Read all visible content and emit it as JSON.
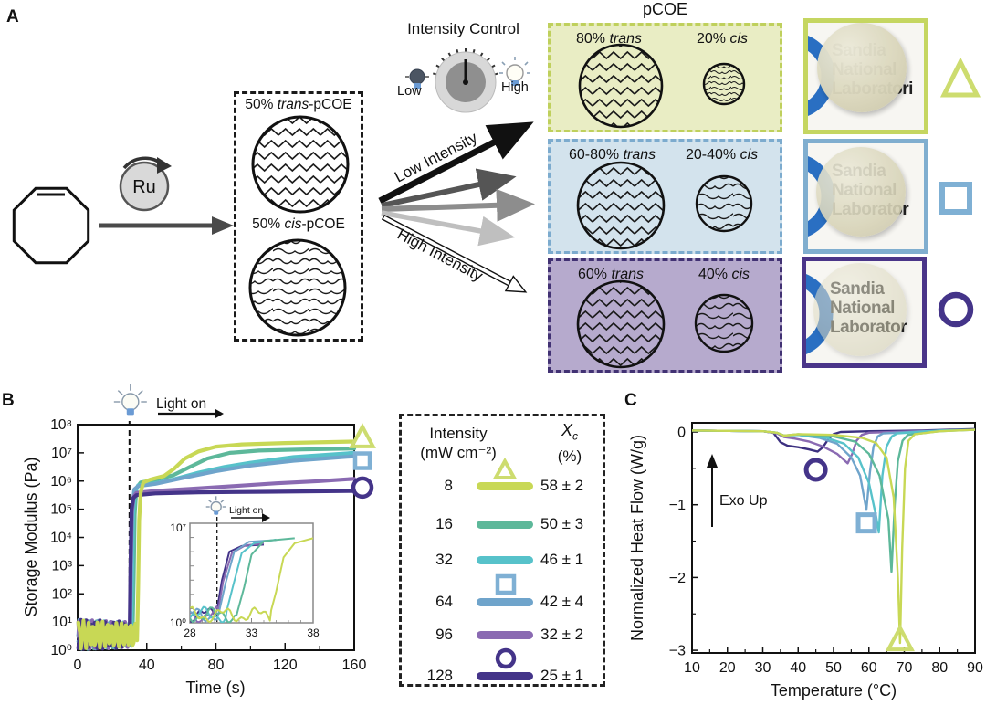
{
  "panelA": {
    "label": "A",
    "catalyst_label": "Ru",
    "precursor_box": {
      "trans_pre": "50% ",
      "trans_it": "trans",
      "trans_post": "-pCOE",
      "cis_pre": "50% ",
      "cis_it": "cis",
      "cis_post": "-pCOE"
    },
    "intensity_control": {
      "title": "Intensity Control",
      "low": "Low",
      "high": "High"
    },
    "arrow_labels": {
      "low": "Low Intensity",
      "high": "High Intensity"
    },
    "pcoe_title": "pCOE",
    "boxes": [
      {
        "trans_pct": "80%",
        "trans_word": "trans",
        "cis_pct": "20%",
        "cis_word": "cis",
        "bg": "#e9edc4",
        "border": "#bfd05c"
      },
      {
        "trans_pct": "60-80%",
        "trans_word": "trans",
        "cis_pct": "20-40%",
        "cis_word": "cis",
        "bg": "#d3e3ed",
        "border": "#7cabce"
      },
      {
        "trans_pct": "60%",
        "trans_word": "trans",
        "cis_pct": "40%",
        "cis_word": "cis",
        "bg": "#b6aacd",
        "border": "#413173"
      }
    ],
    "photos": [
      {
        "border": "#c5d661",
        "lines": [
          "Sandia",
          "National",
          "Laboratori"
        ],
        "marker": "triangle",
        "marker_color": "#cddc6f"
      },
      {
        "border": "#80aecf",
        "lines": [
          "Sandia",
          "National",
          "Laborator"
        ],
        "marker": "square",
        "marker_color": "#7fb0d4"
      },
      {
        "border": "#4a3589",
        "lines": [
          "Sandia",
          "National",
          "Laborator"
        ],
        "marker": "circle",
        "marker_color": "#443489"
      }
    ]
  },
  "panelB": {
    "label": "B"
  },
  "panelC": {
    "label": "C"
  },
  "legend": {
    "header": {
      "col1_line1": "Intensity",
      "col1_line2": "(mW cm⁻²)",
      "col2_main": "X",
      "col2_sub": "c",
      "col2_line2": "(%)"
    },
    "rows": [
      {
        "intensity": "8",
        "xc": "58 ± 2",
        "color": "#c8d855",
        "marker": "triangle",
        "marker_color": "#cddc6f"
      },
      {
        "intensity": "16",
        "xc": "50 ± 3",
        "color": "#5db89a",
        "marker": null,
        "marker_color": null
      },
      {
        "intensity": "32",
        "xc": "46 ± 1",
        "color": "#57c2ca",
        "marker": null,
        "marker_color": null
      },
      {
        "intensity": "64",
        "xc": "42 ± 4",
        "color": "#6fa4cb",
        "marker": "square",
        "marker_color": "#7fb0d4"
      },
      {
        "intensity": "96",
        "xc": "32 ± 2",
        "color": "#8a6ab2",
        "marker": null,
        "marker_color": null
      },
      {
        "intensity": "128",
        "xc": "25 ± 1",
        "color": "#443489",
        "marker": "circle",
        "marker_color": "#443489"
      }
    ]
  },
  "chart_data": [
    {
      "id": "storage_modulus",
      "type": "line",
      "title": "",
      "xlabel": "Time (s)",
      "ylabel": "Storage Modulus (Pa)",
      "xlim": [
        0,
        160
      ],
      "xticks": [
        0,
        40,
        80,
        120,
        160
      ],
      "x_minor_step": 20,
      "y_scale": "log",
      "ylog_exponent_range": [
        0,
        8
      ],
      "light_on_time_s": 30,
      "light_on_label": "Light on",
      "series": [
        {
          "intensity": 8,
          "color": "#c8d855",
          "points": [
            [
              34.6,
              0.9
            ],
            [
              35.0,
              2.2
            ],
            [
              35.6,
              4.6
            ],
            [
              36.5,
              5.6
            ],
            [
              38,
              5.95
            ],
            [
              42,
              6.05
            ],
            [
              50,
              6.18
            ],
            [
              56,
              6.45
            ],
            [
              62,
              6.8
            ],
            [
              70,
              7.05
            ],
            [
              80,
              7.22
            ],
            [
              95,
              7.3
            ],
            [
              120,
              7.35
            ],
            [
              160,
              7.4
            ]
          ]
        },
        {
          "intensity": 16,
          "color": "#5db89a",
          "points": [
            [
              31.9,
              0.9
            ],
            [
              32.4,
              2.5
            ],
            [
              33.0,
              4.8
            ],
            [
              34,
              5.75
            ],
            [
              36.5,
              5.95
            ],
            [
              45,
              6.05
            ],
            [
              55,
              6.2
            ],
            [
              65,
              6.5
            ],
            [
              75,
              6.8
            ],
            [
              88,
              7.0
            ],
            [
              105,
              7.08
            ],
            [
              130,
              7.12
            ],
            [
              160,
              7.15
            ]
          ]
        },
        {
          "intensity": 32,
          "color": "#57c2ca",
          "points": [
            [
              31.0,
              0.9
            ],
            [
              31.5,
              2.6
            ],
            [
              32.2,
              4.9
            ],
            [
              33.2,
              5.6
            ],
            [
              35,
              5.85
            ],
            [
              45,
              5.92
            ],
            [
              55,
              6.05
            ],
            [
              70,
              6.3
            ],
            [
              85,
              6.5
            ],
            [
              100,
              6.65
            ],
            [
              125,
              6.85
            ],
            [
              160,
              7.0
            ]
          ]
        },
        {
          "intensity": 64,
          "color": "#6fa4cb",
          "points": [
            [
              30.4,
              0.9
            ],
            [
              30.9,
              2.8
            ],
            [
              31.6,
              5.0
            ],
            [
              32.8,
              5.7
            ],
            [
              35,
              5.82
            ],
            [
              45,
              5.9
            ],
            [
              60,
              6.1
            ],
            [
              80,
              6.35
            ],
            [
              100,
              6.55
            ],
            [
              125,
              6.72
            ],
            [
              160,
              6.88
            ]
          ]
        },
        {
          "intensity": 96,
          "color": "#8a6ab2",
          "points": [
            [
              30.3,
              0.9
            ],
            [
              30.7,
              2.9
            ],
            [
              31.4,
              4.9
            ],
            [
              32.5,
              5.45
            ],
            [
              34,
              5.58
            ],
            [
              45,
              5.65
            ],
            [
              65,
              5.72
            ],
            [
              90,
              5.82
            ],
            [
              115,
              5.92
            ],
            [
              140,
              6.0
            ],
            [
              160,
              6.08
            ]
          ]
        },
        {
          "intensity": 128,
          "color": "#443489",
          "points": [
            [
              30.2,
              0.9
            ],
            [
              30.6,
              3.0
            ],
            [
              31.2,
              5.0
            ],
            [
              32.2,
              5.4
            ],
            [
              34,
              5.5
            ],
            [
              45,
              5.56
            ],
            [
              70,
              5.6
            ],
            [
              110,
              5.62
            ],
            [
              160,
              5.65
            ]
          ]
        }
      ],
      "side_markers": [
        {
          "shape": "triangle",
          "color": "#cddc6f",
          "at_exponent": 7.55
        },
        {
          "shape": "square",
          "color": "#7fb0d4",
          "at_exponent": 6.72
        },
        {
          "shape": "circle",
          "color": "#443489",
          "at_exponent": 5.77
        }
      ],
      "inset": {
        "xlim": [
          28,
          38
        ],
        "xticks": [
          28,
          33,
          38
        ],
        "ylog_exponent_range": [
          0,
          7
        ],
        "light_on_time_s": 30.2,
        "light_on_label": "Light on"
      }
    },
    {
      "id": "dsc",
      "type": "line",
      "title": "",
      "xlabel": "Temperature (°C)",
      "ylabel": "Normalized Heat Flow (W/g)",
      "xlim": [
        10,
        90
      ],
      "xticks": [
        10,
        20,
        30,
        40,
        50,
        60,
        70,
        80,
        90
      ],
      "x_minor_step": 5,
      "ylim": [
        -3,
        0
      ],
      "yticks": [
        0,
        -1,
        -2,
        -3
      ],
      "y_minor_step": 0.5,
      "annotation": "Exo Up",
      "series": [
        {
          "intensity": 8,
          "color": "#c8d855",
          "points": [
            [
              10,
              0.02
            ],
            [
              30,
              0.01
            ],
            [
              34,
              -0.01
            ],
            [
              36,
              -0.05
            ],
            [
              40,
              -0.03
            ],
            [
              50,
              -0.04
            ],
            [
              58,
              -0.08
            ],
            [
              62,
              -0.15
            ],
            [
              65,
              -0.35
            ],
            [
              67,
              -0.9
            ],
            [
              68.2,
              -2.0
            ],
            [
              68.8,
              -2.9
            ],
            [
              69.4,
              -1.6
            ],
            [
              70.2,
              -0.5
            ],
            [
              71.2,
              -0.12
            ],
            [
              73,
              -0.03
            ],
            [
              80,
              0.01
            ],
            [
              90,
              0.03
            ]
          ]
        },
        {
          "intensity": 16,
          "color": "#5db89a",
          "points": [
            [
              10,
              0.02
            ],
            [
              30,
              0.01
            ],
            [
              34,
              -0.01
            ],
            [
              36,
              -0.05
            ],
            [
              40,
              -0.03
            ],
            [
              50,
              -0.06
            ],
            [
              56,
              -0.13
            ],
            [
              60,
              -0.3
            ],
            [
              63,
              -0.6
            ],
            [
              65.5,
              -1.2
            ],
            [
              66.4,
              -1.92
            ],
            [
              67.3,
              -1.0
            ],
            [
              68.2,
              -0.4
            ],
            [
              69.5,
              -0.12
            ],
            [
              71,
              -0.04
            ],
            [
              80,
              0.01
            ],
            [
              90,
              0.03
            ]
          ]
        },
        {
          "intensity": 32,
          "color": "#57c2ca",
          "points": [
            [
              10,
              0.02
            ],
            [
              30,
              0.01
            ],
            [
              34,
              -0.01
            ],
            [
              36,
              -0.05
            ],
            [
              40,
              -0.04
            ],
            [
              48,
              -0.08
            ],
            [
              53,
              -0.16
            ],
            [
              57,
              -0.35
            ],
            [
              60,
              -0.7
            ],
            [
              62,
              -1.15
            ],
            [
              62.8,
              -1.38
            ],
            [
              63.8,
              -0.6
            ],
            [
              65,
              -0.2
            ],
            [
              66.5,
              -0.06
            ],
            [
              68,
              -0.02
            ],
            [
              80,
              0.02
            ],
            [
              90,
              0.03
            ]
          ]
        },
        {
          "intensity": 64,
          "color": "#6fa4cb",
          "points": [
            [
              10,
              0.02
            ],
            [
              30,
              0.01
            ],
            [
              34,
              -0.01
            ],
            [
              36,
              -0.05
            ],
            [
              40,
              -0.04
            ],
            [
              46,
              -0.08
            ],
            [
              51,
              -0.16
            ],
            [
              55,
              -0.35
            ],
            [
              57.5,
              -0.6
            ],
            [
              59.3,
              -1.07
            ],
            [
              60.3,
              -0.55
            ],
            [
              61.3,
              -0.2
            ],
            [
              62.5,
              -0.06
            ],
            [
              64,
              -0.02
            ],
            [
              80,
              0.02
            ],
            [
              90,
              0.03
            ]
          ]
        },
        {
          "intensity": 96,
          "color": "#8a6ab2",
          "points": [
            [
              10,
              0.02
            ],
            [
              30,
              0.01
            ],
            [
              34,
              -0.02
            ],
            [
              36,
              -0.07
            ],
            [
              39,
              -0.09
            ],
            [
              43,
              -0.13
            ],
            [
              47,
              -0.2
            ],
            [
              51,
              -0.3
            ],
            [
              54,
              -0.43
            ],
            [
              55.3,
              -0.3
            ],
            [
              56.5,
              -0.12
            ],
            [
              58,
              -0.04
            ],
            [
              60,
              -0.01
            ],
            [
              80,
              0.02
            ],
            [
              90,
              0.03
            ]
          ]
        },
        {
          "intensity": 128,
          "color": "#3c3080",
          "points": [
            [
              10,
              0.02
            ],
            [
              30,
              0.01
            ],
            [
              33,
              -0.01
            ],
            [
              35,
              -0.14
            ],
            [
              37,
              -0.19
            ],
            [
              40,
              -0.21
            ],
            [
              43,
              -0.24
            ],
            [
              45.5,
              -0.27
            ],
            [
              47,
              -0.21
            ],
            [
              48.5,
              -0.1
            ],
            [
              50,
              -0.03
            ],
            [
              52,
              0.0
            ],
            [
              60,
              0.01
            ],
            [
              75,
              0.02
            ],
            [
              90,
              0.04
            ]
          ]
        }
      ],
      "markers": [
        {
          "shape": "circle",
          "color": "#443489",
          "x": 45,
          "y": -0.52
        },
        {
          "shape": "square",
          "color": "#7fb0d4",
          "x": 59.3,
          "y": -1.25
        },
        {
          "shape": "triangle",
          "color": "#cddc6f",
          "x": 68.8,
          "y": -2.85
        }
      ]
    }
  ]
}
